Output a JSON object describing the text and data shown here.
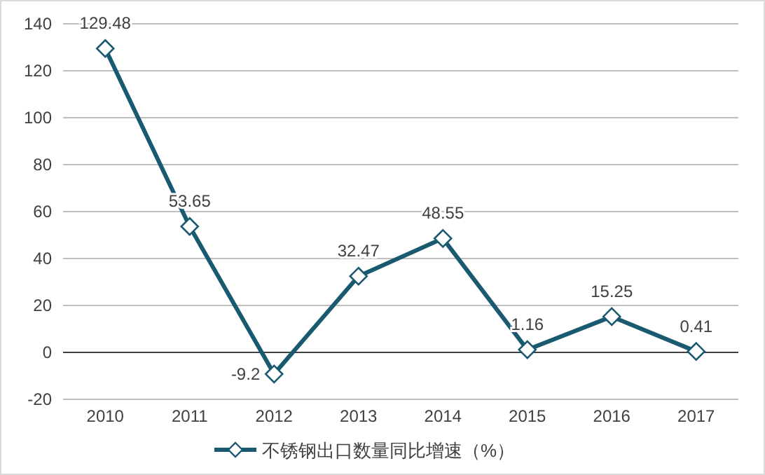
{
  "chart_data": {
    "type": "line",
    "categories": [
      "2010",
      "2011",
      "2012",
      "2013",
      "2014",
      "2015",
      "2016",
      "2017"
    ],
    "series": [
      {
        "name": "不锈钢出口数量同比增速（%）",
        "color": "#1a5a70",
        "values": [
          129.48,
          53.65,
          -9.2,
          32.47,
          48.55,
          1.16,
          15.25,
          0.41
        ]
      }
    ],
    "ylim": [
      -20,
      140
    ],
    "yticks": [
      -20,
      0,
      20,
      40,
      60,
      80,
      100,
      120,
      140
    ],
    "grid": "y",
    "legend": "bottom",
    "marker": "diamond",
    "line_style": "solid",
    "data_labels": true
  }
}
